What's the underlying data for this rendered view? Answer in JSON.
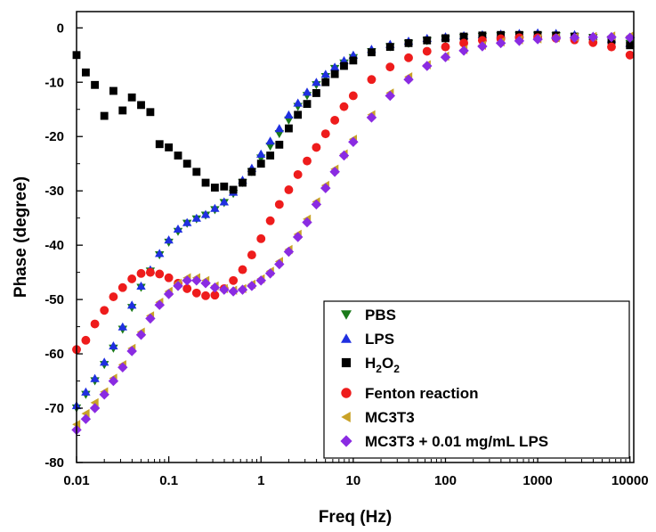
{
  "chart_data": {
    "type": "scatter",
    "xlabel": "Freq (Hz)",
    "ylabel": "Phase (degree)",
    "x_scale": "log",
    "xlim": [
      0.01,
      11000
    ],
    "ylim": [
      -80,
      3
    ],
    "x_ticks": [
      0.01,
      0.1,
      1,
      10,
      100,
      1000,
      10000
    ],
    "x_tick_labels": [
      "0.01",
      "0.1",
      "1",
      "10",
      "100",
      "1000",
      "10000"
    ],
    "y_ticks": [
      0,
      -10,
      -20,
      -30,
      -40,
      -50,
      -60,
      -70,
      -80
    ],
    "y_tick_labels": [
      "0",
      "-10",
      "-20",
      "-30",
      "-40",
      "-50",
      "-60",
      "-70",
      "-80"
    ],
    "grid": false,
    "legend_position": "bottom-right",
    "series": [
      {
        "name": "PBS",
        "color": "#1a7a1a",
        "marker": "triangle-down",
        "x": [
          0.01,
          0.0126,
          0.0158,
          0.02,
          0.0251,
          0.0316,
          0.0398,
          0.0501,
          0.0631,
          0.0794,
          0.1,
          0.126,
          0.158,
          0.2,
          0.251,
          0.316,
          0.398,
          0.501,
          0.631,
          0.794,
          1,
          1.26,
          1.58,
          2,
          2.51,
          3.16,
          3.98,
          5.01,
          6.31,
          7.94,
          10,
          15.8,
          25.1,
          39.8,
          63.1,
          100,
          158,
          251,
          398,
          631,
          1000,
          1580,
          2510,
          3980,
          6310,
          10000
        ],
        "y": [
          -70,
          -67.5,
          -65,
          -62,
          -59,
          -55.5,
          -51.5,
          -47.8,
          -44.8,
          -41.8,
          -39.5,
          -37.5,
          -36,
          -35.2,
          -34.5,
          -33.5,
          -32.2,
          -30.5,
          -28.5,
          -26.5,
          -24,
          -21.8,
          -19.5,
          -17,
          -14.5,
          -12.5,
          -10.5,
          -9,
          -7.5,
          -6.5,
          -5.5,
          -4.4,
          -3.5,
          -2.9,
          -2.4,
          -2.1,
          -1.8,
          -1.6,
          -1.5,
          -1.4,
          -1.4,
          -1.5,
          -1.6,
          -1.8,
          -2.2,
          -2.9
        ]
      },
      {
        "name": "LPS",
        "color": "#1f2fe0",
        "marker": "triangle-up",
        "x": [
          0.01,
          0.0126,
          0.0158,
          0.02,
          0.0251,
          0.0316,
          0.0398,
          0.0501,
          0.0631,
          0.0794,
          0.1,
          0.126,
          0.158,
          0.2,
          0.251,
          0.316,
          0.398,
          0.501,
          0.631,
          0.794,
          1,
          1.26,
          1.58,
          2,
          2.51,
          3.16,
          3.98,
          5.01,
          6.31,
          7.94,
          10,
          15.8,
          25.1,
          39.8,
          63.1,
          100,
          158,
          251,
          398,
          631,
          1000,
          1580,
          2510,
          3980,
          6310,
          10000
        ],
        "y": [
          -69.5,
          -67,
          -64.5,
          -61.5,
          -58.5,
          -55,
          -51,
          -47.5,
          -44.5,
          -41.5,
          -39,
          -37,
          -35.8,
          -35,
          -34.3,
          -33.2,
          -32,
          -30.2,
          -28,
          -25.8,
          -23.2,
          -20.8,
          -18.5,
          -16,
          -13.8,
          -11.8,
          -10,
          -8.5,
          -7.2,
          -6,
          -5,
          -3.9,
          -3,
          -2.4,
          -1.9,
          -1.6,
          -1.4,
          -1.2,
          -1.1,
          -1,
          -0.9,
          -1,
          -1.2,
          -1.5,
          -2,
          -2.8
        ]
      },
      {
        "name": "H2O2",
        "color": "#000000",
        "marker": "square",
        "x": [
          0.01,
          0.0126,
          0.0158,
          0.02,
          0.0251,
          0.0316,
          0.0398,
          0.0501,
          0.0631,
          0.0794,
          0.1,
          0.126,
          0.158,
          0.2,
          0.251,
          0.316,
          0.398,
          0.501,
          0.631,
          0.794,
          1,
          1.26,
          1.58,
          2,
          2.51,
          3.16,
          3.98,
          5.01,
          6.31,
          7.94,
          10,
          15.8,
          25.1,
          39.8,
          63.1,
          100,
          158,
          251,
          398,
          631,
          1000,
          1580,
          2510,
          3980,
          6310,
          10000
        ],
        "y": [
          -5,
          -8.2,
          -10.5,
          -16.2,
          -11.6,
          -15.2,
          -12.8,
          -14.2,
          -15.5,
          -21.4,
          -22,
          -23.5,
          -25,
          -26.5,
          -28.5,
          -29.4,
          -29.2,
          -29.8,
          -28.5,
          -26.5,
          -25,
          -23.5,
          -21.5,
          -18.5,
          -16,
          -14,
          -12,
          -10,
          -8.5,
          -7,
          -6,
          -4.5,
          -3.5,
          -2.8,
          -2.3,
          -1.9,
          -1.6,
          -1.4,
          -1.3,
          -1.3,
          -1.3,
          -1.4,
          -1.6,
          -1.9,
          -2.3,
          -3.2
        ]
      },
      {
        "name": "Fenton reaction",
        "color": "#ee1c1c",
        "marker": "circle",
        "x": [
          0.01,
          0.0126,
          0.0158,
          0.02,
          0.0251,
          0.0316,
          0.0398,
          0.0501,
          0.0631,
          0.0794,
          0.1,
          0.126,
          0.158,
          0.2,
          0.251,
          0.316,
          0.398,
          0.501,
          0.631,
          0.794,
          1,
          1.26,
          1.58,
          2,
          2.51,
          3.16,
          3.98,
          5.01,
          6.31,
          7.94,
          10,
          15.8,
          25.1,
          39.8,
          63.1,
          100,
          158,
          251,
          398,
          631,
          1000,
          1580,
          2510,
          3980,
          6310,
          10000
        ],
        "y": [
          -59.2,
          -57.5,
          -54.5,
          -52,
          -49.5,
          -47.8,
          -46.2,
          -45.2,
          -45,
          -45.3,
          -46,
          -47,
          -48,
          -48.8,
          -49.3,
          -49.2,
          -48,
          -46.5,
          -44.5,
          -41.8,
          -38.8,
          -35.5,
          -32.5,
          -29.8,
          -27,
          -24.5,
          -22,
          -19.5,
          -17,
          -14.5,
          -12.5,
          -9.5,
          -7.2,
          -5.5,
          -4.3,
          -3.5,
          -2.8,
          -2.3,
          -2,
          -1.8,
          -1.8,
          -1.9,
          -2.2,
          -2.7,
          -3.5,
          -5
        ]
      },
      {
        "name": "MC3T3",
        "color": "#c9a227",
        "marker": "triangle-left",
        "x": [
          0.01,
          0.0126,
          0.0158,
          0.02,
          0.0251,
          0.0316,
          0.0398,
          0.0501,
          0.0631,
          0.0794,
          0.1,
          0.126,
          0.158,
          0.2,
          0.251,
          0.316,
          0.398,
          0.501,
          0.631,
          0.794,
          1,
          1.26,
          1.58,
          2,
          2.51,
          3.16,
          3.98,
          5.01,
          6.31,
          7.94,
          10,
          15.8,
          25.1,
          39.8,
          63.1,
          100,
          158,
          251,
          398,
          631,
          1000,
          1580,
          2510,
          3980,
          6310,
          10000
        ],
        "y": [
          -73,
          -71,
          -69,
          -67,
          -64.5,
          -62,
          -59,
          -56,
          -53,
          -50.5,
          -48.5,
          -47,
          -46,
          -46,
          -46.5,
          -47.5,
          -48,
          -48.3,
          -48,
          -47.2,
          -46.2,
          -44.8,
          -43,
          -40.8,
          -38,
          -35.2,
          -32,
          -29,
          -26,
          -23.2,
          -20.5,
          -16,
          -12,
          -9,
          -6.8,
          -5.2,
          -4,
          -3.2,
          -2.6,
          -2.2,
          -2,
          -1.8,
          -1.7,
          -1.6,
          -1.5,
          -1.5
        ]
      },
      {
        "name": "MC3T3 + 0.01 mg/mL LPS",
        "color": "#8a2be2",
        "marker": "diamond",
        "x": [
          0.01,
          0.0126,
          0.0158,
          0.02,
          0.0251,
          0.0316,
          0.0398,
          0.0501,
          0.0631,
          0.0794,
          0.1,
          0.126,
          0.158,
          0.2,
          0.251,
          0.316,
          0.398,
          0.501,
          0.631,
          0.794,
          1,
          1.26,
          1.58,
          2,
          2.51,
          3.16,
          3.98,
          5.01,
          6.31,
          7.94,
          10,
          15.8,
          25.1,
          39.8,
          63.1,
          100,
          158,
          251,
          398,
          631,
          1000,
          1580,
          2510,
          3980,
          6310,
          10000
        ],
        "y": [
          -74,
          -72,
          -70,
          -67.5,
          -65,
          -62.5,
          -59.5,
          -56.5,
          -53.5,
          -51,
          -49,
          -47.5,
          -46.5,
          -46.5,
          -47,
          -47.8,
          -48.2,
          -48.5,
          -48.2,
          -47.5,
          -46.5,
          -45.2,
          -43.5,
          -41.2,
          -38.5,
          -35.8,
          -32.5,
          -29.5,
          -26.5,
          -23.5,
          -21,
          -16.5,
          -12.5,
          -9.5,
          -7,
          -5.4,
          -4.2,
          -3.4,
          -2.8,
          -2.4,
          -2.1,
          -1.9,
          -1.8,
          -1.7,
          -1.7,
          -1.8
        ]
      }
    ]
  },
  "legend": {
    "items": [
      {
        "label": "PBS"
      },
      {
        "label": "LPS"
      },
      {
        "label": "H",
        "sub1": "2",
        "mid": "O",
        "sub2": "2"
      },
      {
        "label": "Fenton reaction"
      },
      {
        "label": "MC3T3"
      },
      {
        "label": "MC3T3 + 0.01 mg/mL LPS"
      }
    ]
  }
}
